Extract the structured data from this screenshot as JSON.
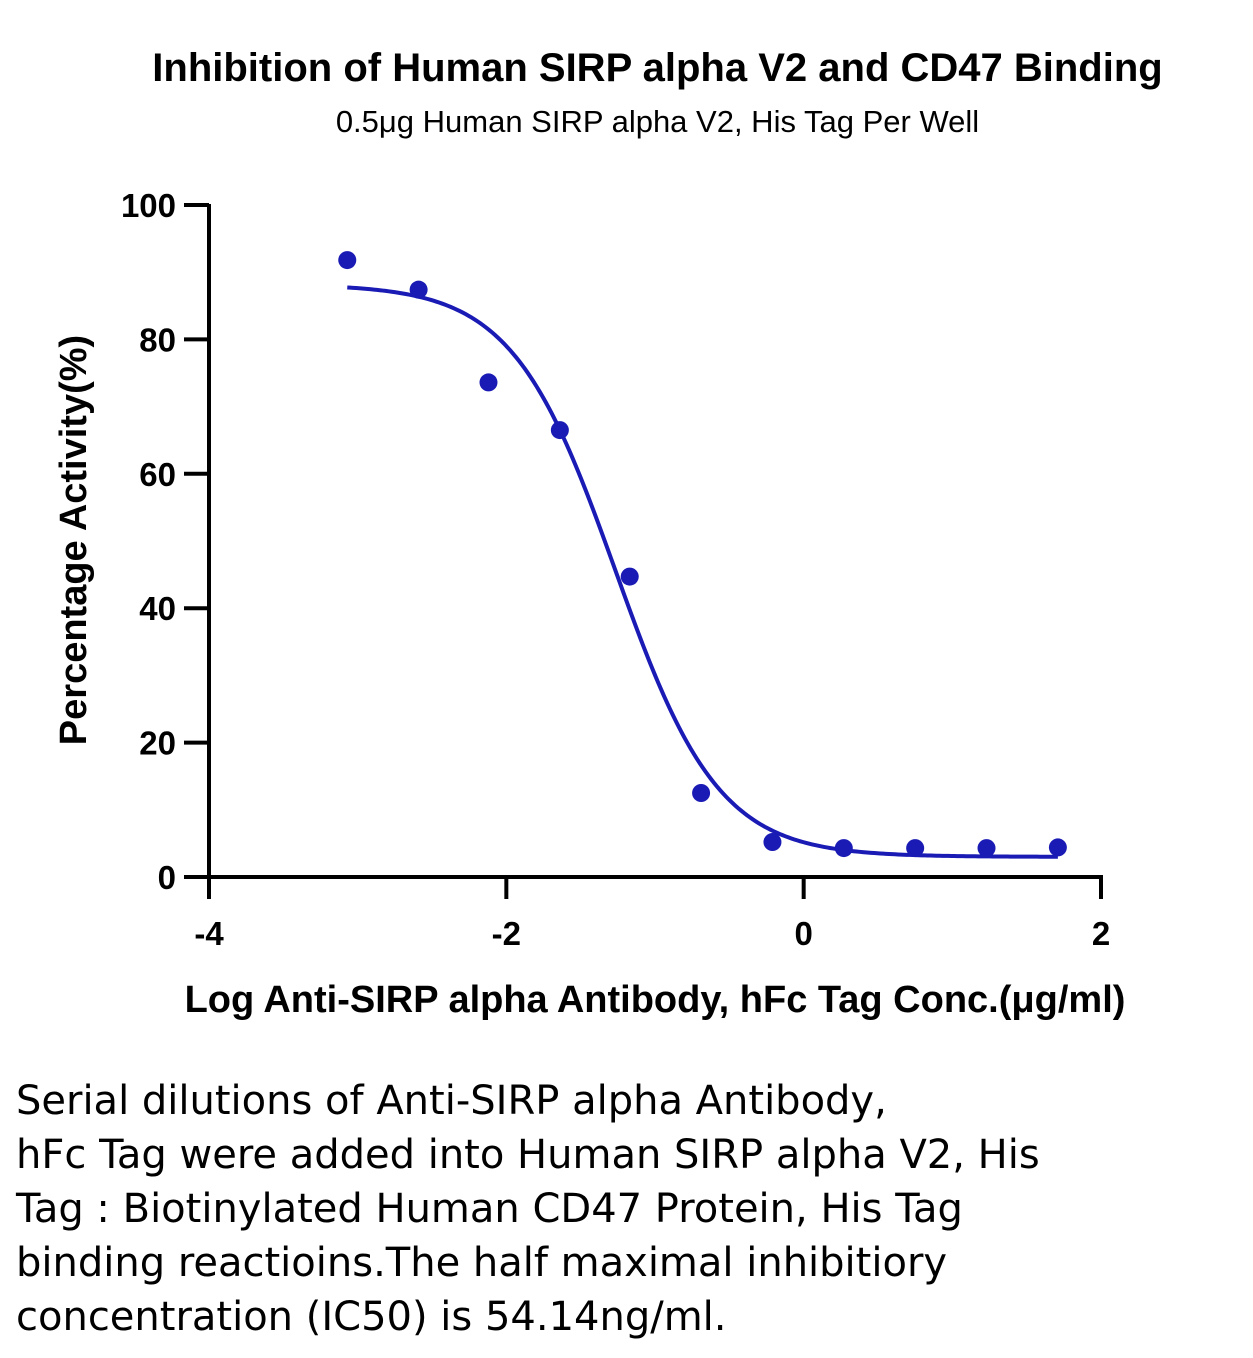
{
  "chart_data": {
    "type": "scatter",
    "title": "Inhibition of Human SIRP alpha V2 and CD47 Binding",
    "subtitle": "0.5μg Human SIRP alpha V2, His Tag Per Well",
    "xlabel": "Log Anti-SIRP alpha Antibody, hFc Tag Conc.(μg/ml)",
    "ylabel": "Percentage Activity(%)",
    "xlim": [
      -4,
      2
    ],
    "ylim": [
      0,
      100
    ],
    "xticks": [
      -4,
      -2,
      0,
      2
    ],
    "yticks": [
      0,
      20,
      40,
      60,
      80,
      100
    ],
    "grid": false,
    "legend": "none",
    "points": {
      "x": [
        -3.07,
        -2.59,
        -2.12,
        -1.64,
        -1.17,
        -0.69,
        -0.21,
        0.27,
        0.75,
        1.23,
        1.71
      ],
      "y": [
        91.8,
        87.4,
        73.6,
        66.5,
        44.7,
        12.5,
        5.2,
        4.3,
        4.3,
        4.3,
        4.4
      ]
    },
    "fit": {
      "model": "four-parameter logistic",
      "top": 88.2,
      "bottom": 3.0,
      "logIC50": -1.266,
      "hill": -1.25,
      "x_range": [
        -3.07,
        1.71
      ]
    },
    "color": "#1a1ab5"
  },
  "caption": "Serial dilutions of Anti-SIRP alpha Antibody,\nhFc Tag were added into Human SIRP alpha V2, His\nTag : Biotinylated Human CD47 Protein, His Tag\nbinding reactioins.The half maximal inhibitiory\nconcentration (IC50) is 54.14ng/ml."
}
